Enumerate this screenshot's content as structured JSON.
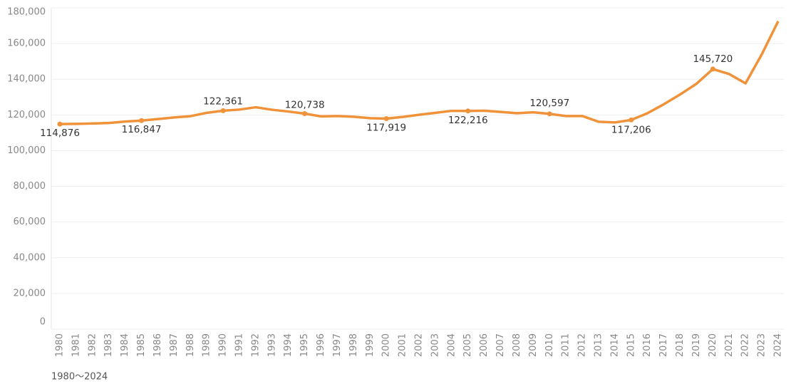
{
  "chart_data": {
    "type": "line",
    "caption": "1980～2024",
    "x": [
      "1980",
      "1981",
      "1982",
      "1983",
      "1984",
      "1985",
      "1986",
      "1987",
      "1988",
      "1989",
      "1990",
      "1991",
      "1992",
      "1993",
      "1994",
      "1995",
      "1996",
      "1997",
      "1998",
      "1999",
      "2000",
      "2001",
      "2002",
      "2003",
      "2004",
      "2005",
      "2006",
      "2007",
      "2008",
      "2009",
      "2010",
      "2011",
      "2012",
      "2013",
      "2014",
      "2015",
      "2016",
      "2017",
      "2018",
      "2019",
      "2020",
      "2021",
      "2022",
      "2023",
      "2024"
    ],
    "series": [
      {
        "color": "#f0923a",
        "values": [
          114876,
          115000,
          115200,
          115500,
          116300,
          116847,
          117700,
          118600,
          119300,
          121200,
          122361,
          123000,
          124300,
          122900,
          121900,
          120738,
          119200,
          119400,
          119000,
          118200,
          117919,
          118900,
          120100,
          121200,
          122300,
          122216,
          122400,
          121700,
          121000,
          121500,
          120597,
          119400,
          119400,
          116200,
          115800,
          117206,
          121000,
          126000,
          131500,
          137500,
          145720,
          142900,
          137700,
          154000,
          172500
        ],
        "value_labels": [
          "114,876",
          null,
          null,
          null,
          null,
          "116,847",
          null,
          null,
          null,
          null,
          "122,361",
          null,
          null,
          null,
          null,
          "120,738",
          null,
          null,
          null,
          null,
          "117,919",
          null,
          null,
          null,
          null,
          "122,216",
          null,
          null,
          null,
          null,
          "120,597",
          null,
          null,
          null,
          null,
          "117,206",
          null,
          null,
          null,
          null,
          "145,720",
          null,
          null,
          null,
          null
        ]
      }
    ],
    "ylim": [
      0,
      180000
    ],
    "yticks": [
      0,
      {
        "value": 20000,
        "label": "20,000"
      },
      {
        "value": 40000,
        "label": "40,000"
      },
      {
        "value": 60000,
        "label": "60,000"
      },
      {
        "value": 80000,
        "label": "80,000"
      },
      {
        "value": 100000,
        "label": "100,000"
      },
      {
        "value": 120000,
        "label": "120,000"
      },
      {
        "value": 140000,
        "label": "140,000"
      },
      {
        "value": 160000,
        "label": "160,000"
      },
      {
        "value": 180000,
        "label": "180,000"
      }
    ],
    "grid": true
  }
}
